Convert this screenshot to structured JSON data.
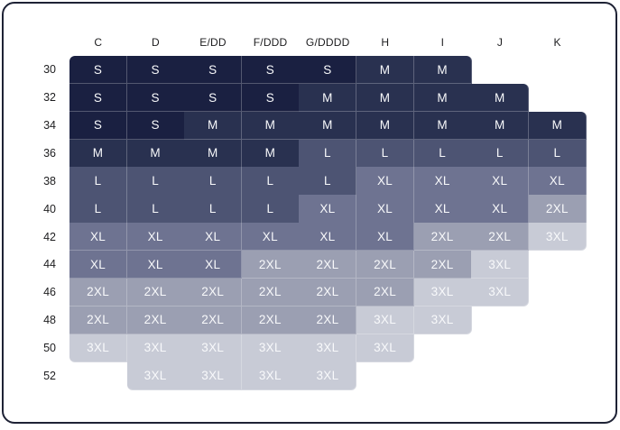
{
  "chart_data": {
    "type": "heatmap",
    "x_labels": [
      "C",
      "D",
      "E/DD",
      "F/DDD",
      "G/DDDD",
      "H",
      "I",
      "J",
      "K"
    ],
    "y_labels": [
      "30",
      "32",
      "34",
      "36",
      "38",
      "40",
      "42",
      "44",
      "46",
      "48",
      "50",
      "52"
    ],
    "values": [
      [
        "S",
        "S",
        "S",
        "S",
        "S",
        "M",
        "M",
        "",
        ""
      ],
      [
        "S",
        "S",
        "S",
        "S",
        "M",
        "M",
        "M",
        "M",
        ""
      ],
      [
        "S",
        "S",
        "M",
        "M",
        "M",
        "M",
        "M",
        "M",
        "M"
      ],
      [
        "M",
        "M",
        "M",
        "M",
        "L",
        "L",
        "L",
        "L",
        "L"
      ],
      [
        "L",
        "L",
        "L",
        "L",
        "L",
        "XL",
        "XL",
        "XL",
        "XL"
      ],
      [
        "L",
        "L",
        "L",
        "L",
        "XL",
        "XL",
        "XL",
        "XL",
        "2XL"
      ],
      [
        "XL",
        "XL",
        "XL",
        "XL",
        "XL",
        "XL",
        "2XL",
        "2XL",
        "3XL"
      ],
      [
        "XL",
        "XL",
        "XL",
        "2XL",
        "2XL",
        "2XL",
        "2XL",
        "3XL",
        ""
      ],
      [
        "2XL",
        "2XL",
        "2XL",
        "2XL",
        "2XL",
        "2XL",
        "3XL",
        "3XL",
        ""
      ],
      [
        "2XL",
        "2XL",
        "2XL",
        "2XL",
        "2XL",
        "3XL",
        "3XL",
        "",
        ""
      ],
      [
        "3XL",
        "3XL",
        "3XL",
        "3XL",
        "3XL",
        "3XL",
        "",
        "",
        ""
      ],
      [
        "",
        "3XL",
        "3XL",
        "3XL",
        "3XL",
        "",
        "",
        "",
        ""
      ]
    ],
    "size_colors": {
      "S": "#1a2041",
      "M": "#293150",
      "L": "#4d5473",
      "XL": "#6e7391",
      "2XL": "#9b9fb2",
      "3XL": "#c8cbd6"
    },
    "cell_text_color": "#f8f9fb",
    "label_text_color": "#1d1d1f",
    "card_border_color": "#1e2235",
    "grid_on": false,
    "legend_position": "none",
    "title": ""
  }
}
